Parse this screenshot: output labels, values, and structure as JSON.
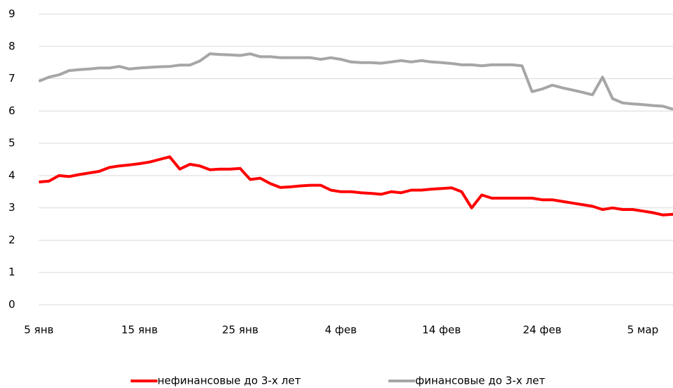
{
  "chart_data": {
    "type": "line",
    "categories": [
      "5 янв",
      null,
      null,
      null,
      null,
      null,
      null,
      null,
      null,
      null,
      "15 янв",
      null,
      null,
      null,
      null,
      null,
      null,
      null,
      null,
      null,
      "25 янв",
      null,
      null,
      null,
      null,
      null,
      null,
      null,
      null,
      null,
      "4 фев",
      null,
      null,
      null,
      null,
      null,
      null,
      null,
      null,
      null,
      "14 фев",
      null,
      null,
      null,
      null,
      null,
      null,
      null,
      null,
      null,
      "24 фев",
      null,
      null,
      null,
      null,
      null,
      null,
      null,
      null,
      null,
      "5 мар",
      null,
      null,
      null
    ],
    "series": [
      {
        "name": "нефинансовые до 3-х лет",
        "color": "#ff0000",
        "values": [
          3.8,
          3.83,
          4.0,
          3.97,
          4.03,
          4.08,
          4.13,
          4.25,
          4.3,
          4.33,
          4.37,
          4.42,
          4.5,
          4.58,
          4.2,
          4.35,
          4.3,
          4.18,
          4.2,
          4.2,
          4.22,
          3.88,
          3.92,
          3.75,
          3.63,
          3.65,
          3.68,
          3.7,
          3.7,
          3.55,
          3.5,
          3.5,
          3.47,
          3.45,
          3.42,
          3.5,
          3.47,
          3.55,
          3.55,
          3.58,
          3.6,
          3.62,
          3.5,
          3.0,
          3.4,
          3.3,
          3.3,
          3.3,
          3.3,
          3.3,
          3.25,
          3.25,
          3.2,
          3.15,
          3.1,
          3.05,
          2.95,
          3.0,
          2.95,
          2.95,
          2.9,
          2.85,
          2.78,
          2.8
        ]
      },
      {
        "name": "финансовые до 3-х лет",
        "color": "#a6a6a6",
        "values": [
          6.92,
          7.05,
          7.12,
          7.25,
          7.28,
          7.3,
          7.33,
          7.33,
          7.38,
          7.3,
          7.33,
          7.35,
          7.37,
          7.38,
          7.42,
          7.42,
          7.55,
          7.77,
          7.75,
          7.74,
          7.72,
          7.77,
          7.68,
          7.68,
          7.65,
          7.65,
          7.65,
          7.65,
          7.6,
          7.65,
          7.6,
          7.52,
          7.5,
          7.5,
          7.48,
          7.52,
          7.56,
          7.52,
          7.56,
          7.52,
          7.5,
          7.47,
          7.43,
          7.43,
          7.4,
          7.43,
          7.43,
          7.43,
          7.4,
          6.6,
          6.68,
          6.8,
          6.72,
          6.65,
          6.58,
          6.5,
          7.05,
          6.38,
          6.25,
          6.22,
          6.2,
          6.17,
          6.15,
          6.05
        ]
      }
    ],
    "ylim": [
      0,
      9
    ],
    "yticks": [
      0,
      1,
      2,
      3,
      4,
      5,
      6,
      7,
      8,
      9
    ],
    "grid": true,
    "legend": "bottom"
  }
}
